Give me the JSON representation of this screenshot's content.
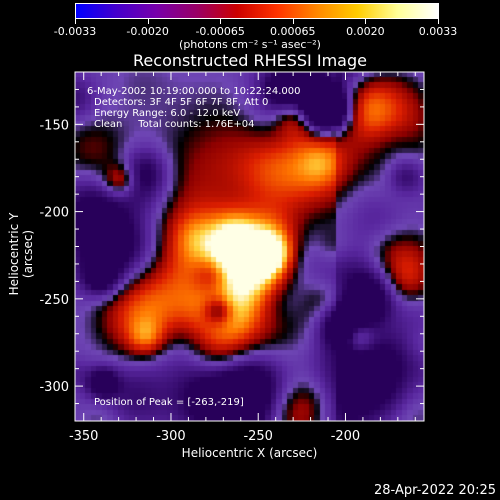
{
  "colorbar": {
    "ticks": [
      "-0.0033",
      "-0.0020",
      "-0.00065",
      "0.00065",
      "0.0020",
      "0.0033"
    ],
    "units": "(photons cm⁻² s⁻¹ asec⁻²)",
    "stops": [
      "#0000ff",
      "#4400cc",
      "#7700aa",
      "#990066",
      "#cc0000",
      "#ff3300",
      "#ff8800",
      "#ffcc00",
      "#ffff99",
      "#ffffff"
    ]
  },
  "chart_data": {
    "type": "heatmap",
    "title": "Reconstructed RHESSI Image",
    "xlabel": "Heliocentric X (arcsec)",
    "ylabel": "Heliocentric Y (arcsec)",
    "xlim": [
      -355,
      -155
    ],
    "ylim": [
      -320,
      -120
    ],
    "x_ticks": [
      "-350",
      "-300",
      "-250",
      "-200"
    ],
    "y_ticks": [
      "-150",
      "-200",
      "-250",
      "-300"
    ],
    "x_tick_values": [
      -350,
      -300,
      -250,
      -200
    ],
    "y_tick_values": [
      -150,
      -200,
      -250,
      -300
    ],
    "peak": {
      "x": -263,
      "y": -219
    },
    "colorbar_range": [
      -0.0033,
      0.0033
    ]
  },
  "annotations": {
    "line1": "6-May-2002 10:19:00.000 to 10:22:24.000",
    "line2": "Detectors: 3F 4F 5F 6F 7F 8F, Att 0",
    "line3": "Energy Range: 6.0 - 12.0 keV",
    "line4": "Clean     Total counts: 1.76E+04",
    "peak_text": "Position of Peak = [-263,-219]"
  },
  "footer": {
    "timestamp": "28-Apr-2022 20:25"
  }
}
